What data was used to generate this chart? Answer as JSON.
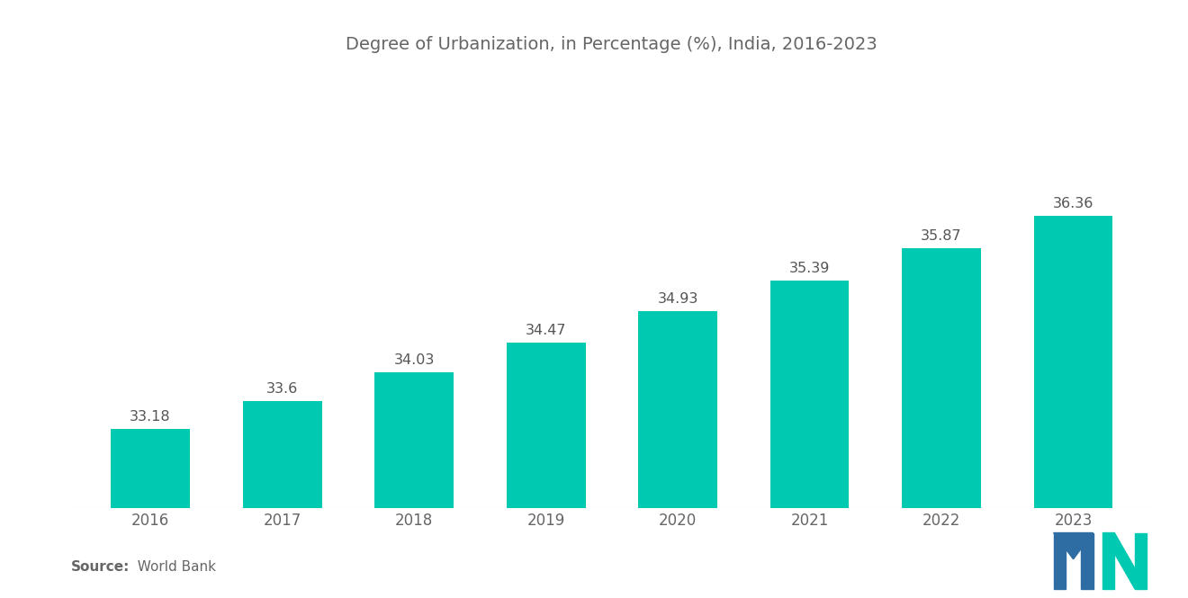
{
  "title": "Degree of Urbanization, in Percentage (%), India, 2016-2023",
  "years": [
    "2016",
    "2017",
    "2018",
    "2019",
    "2020",
    "2021",
    "2022",
    "2023"
  ],
  "values": [
    33.18,
    33.6,
    34.03,
    34.47,
    34.93,
    35.39,
    35.87,
    36.36
  ],
  "bar_color": "#00C9B1",
  "background_color": "#ffffff",
  "title_fontsize": 14,
  "label_fontsize": 11.5,
  "tick_fontsize": 12,
  "source_bold": "Source:",
  "source_normal": "  World Bank",
  "ylim_min": 32.0,
  "ylim_max": 38.5,
  "title_color": "#666666",
  "tick_color": "#666666",
  "bar_label_color": "#555555"
}
